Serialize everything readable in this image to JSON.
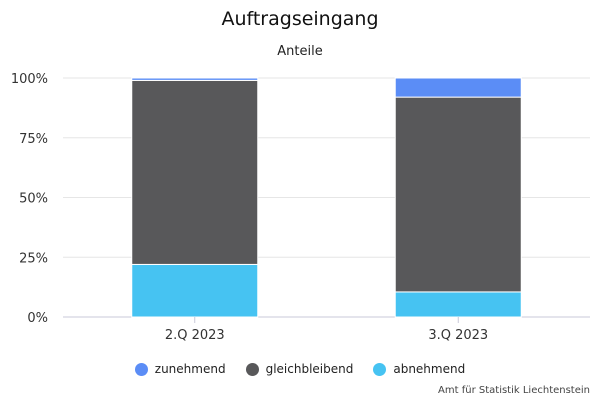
{
  "chart_data": {
    "type": "bar",
    "stacked": true,
    "title": "Auftragseingang",
    "subtitle": "Anteile",
    "categories": [
      "2.Q 2023",
      "3.Q 2023"
    ],
    "series": [
      {
        "name": "abnehmend",
        "color": "#46c3f2",
        "values": [
          22,
          10.5
        ]
      },
      {
        "name": "gleichbleibend",
        "color": "#58585a",
        "values": [
          77,
          81.5
        ]
      },
      {
        "name": "zunehmend",
        "color": "#5b8df6",
        "values": [
          1,
          8
        ]
      }
    ],
    "ylim": [
      0,
      100
    ],
    "y_ticks": [
      "0%",
      "25%",
      "50%",
      "75%",
      "100%"
    ],
    "grid": true,
    "legend_position": "bottom",
    "legend_order": [
      "zunehmend",
      "gleichbleibend",
      "abnehmend"
    ],
    "credit": "Amt für Statistik Liechtenstein"
  }
}
